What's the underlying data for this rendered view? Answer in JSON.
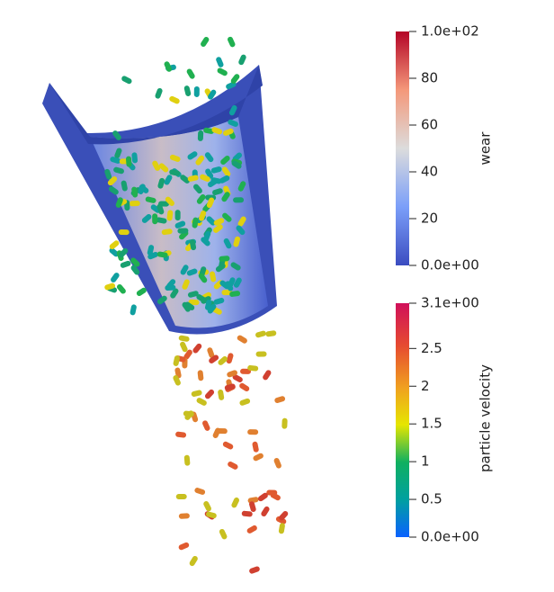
{
  "colorbars": [
    {
      "title": "wear",
      "range": [
        0,
        100
      ],
      "ticks": [
        {
          "value": 100,
          "label": "1.0e+02"
        },
        80,
        60,
        40,
        20,
        {
          "value": 0,
          "label": "0.0e+00"
        }
      ]
    },
    {
      "title": "particle velocity",
      "range": [
        0,
        3.1
      ],
      "ticks": [
        {
          "value": 3.1,
          "label": "3.1e+00"
        },
        2.5,
        2,
        1.5,
        1,
        0.5,
        {
          "value": 0,
          "label": "0.0e+00"
        }
      ]
    }
  ]
}
